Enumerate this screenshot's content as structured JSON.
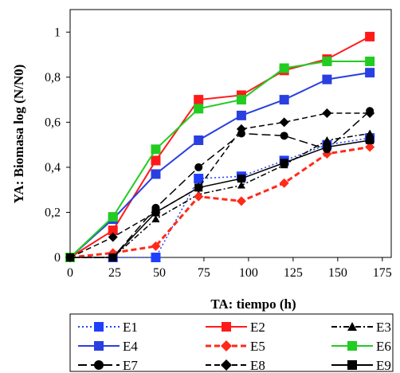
{
  "chart_data": {
    "type": "line",
    "xlabel": "TA: tiempo (h)",
    "ylabel": "YA: Biomasa log (N/N0)",
    "xlim": [
      0,
      180
    ],
    "ylim": [
      0,
      1.1
    ],
    "x_ticks": [
      0,
      25,
      50,
      75,
      100,
      125,
      150,
      175
    ],
    "y_ticks": [
      0,
      0.2,
      0.4,
      0.6,
      0.8,
      1
    ],
    "x_tick_labels": [
      "0",
      "25",
      "50",
      "75",
      "100",
      "125",
      "150",
      "175"
    ],
    "y_tick_labels": [
      "0",
      "0,2",
      "0,4",
      "0,6",
      "0,8",
      "1"
    ],
    "grid": false,
    "legend_position": "bottom",
    "x": [
      0,
      24,
      48,
      72,
      96,
      120,
      144,
      168
    ],
    "series": [
      {
        "name": "E1",
        "color": "#1f3fff",
        "dash": "dotted",
        "marker": "square",
        "values": [
          0,
          0,
          0,
          0.35,
          0.36,
          0.43,
          0.5,
          0.53
        ]
      },
      {
        "name": "E2",
        "color": "#ff1a1a",
        "dash": "solid",
        "marker": "square",
        "values": [
          0,
          0.12,
          0.43,
          0.7,
          0.72,
          0.83,
          0.88,
          0.98
        ]
      },
      {
        "name": "E3",
        "color": "#000000",
        "dash": "dash-dot",
        "marker": "triangle",
        "values": [
          0,
          0,
          0.17,
          0.28,
          0.32,
          0.41,
          0.52,
          0.55
        ]
      },
      {
        "name": "E4",
        "color": "#2a3fe0",
        "dash": "solid",
        "marker": "square",
        "values": [
          0,
          0.17,
          0.37,
          0.52,
          0.63,
          0.7,
          0.79,
          0.82
        ]
      },
      {
        "name": "E5",
        "color": "#ff2a1a",
        "dash": "dashed",
        "marker": "diamond",
        "values": [
          0,
          0.02,
          0.05,
          0.27,
          0.25,
          0.33,
          0.46,
          0.49
        ]
      },
      {
        "name": "E6",
        "color": "#22cc22",
        "dash": "solid",
        "marker": "square",
        "values": [
          0,
          0.18,
          0.48,
          0.66,
          0.7,
          0.84,
          0.87,
          0.87
        ]
      },
      {
        "name": "E7",
        "color": "#000000",
        "dash": "long-dash",
        "marker": "circle",
        "values": [
          0,
          0,
          0.22,
          0.4,
          0.55,
          0.54,
          0.48,
          0.65
        ]
      },
      {
        "name": "E8",
        "color": "#000000",
        "dash": "dashed",
        "marker": "diamond",
        "values": [
          0,
          0.09,
          0.2,
          0.31,
          0.57,
          0.6,
          0.64,
          0.64
        ]
      },
      {
        "name": "E9",
        "color": "#000000",
        "dash": "solid",
        "marker": "square",
        "values": [
          0,
          0,
          0.2,
          0.31,
          0.35,
          0.42,
          0.49,
          0.52
        ]
      }
    ]
  }
}
